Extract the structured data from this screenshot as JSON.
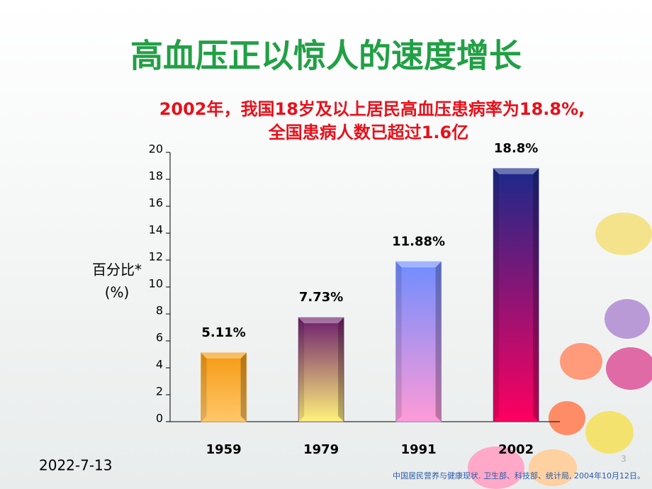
{
  "chart_data": {
    "type": "bar",
    "title": "高血压正以惊人的速度增长",
    "subtitle": [
      "2002年，我国18岁及以上居民高血压患病率为18.8%,",
      "全国患病人数已超过1.6亿"
    ],
    "y_label": [
      "百分比*",
      "(%)"
    ],
    "categories": [
      "1959",
      "1979",
      "1991",
      "2002"
    ],
    "values": [
      5.11,
      7.73,
      11.88,
      18.8
    ],
    "value_labels": [
      "5.11%",
      "7.73%",
      "11.88%",
      "18.8%"
    ],
    "colors": [
      [
        "#f59a12",
        "#ffc76a"
      ],
      [
        "#6e1f6e",
        "#fff27a"
      ],
      [
        "#6f8dff",
        "#ff9ad6"
      ],
      [
        "#1a2a8a",
        "#ff0060"
      ]
    ],
    "ylim": [
      0,
      20
    ],
    "yticks": [
      0,
      2,
      4,
      6,
      8,
      10,
      12,
      14,
      16,
      18,
      20
    ],
    "date": "2022-7-13",
    "source": "中国居民营养与健康现状. 卫生部、科技部、统计局, 2004年10月12日。",
    "page_number": "3"
  }
}
